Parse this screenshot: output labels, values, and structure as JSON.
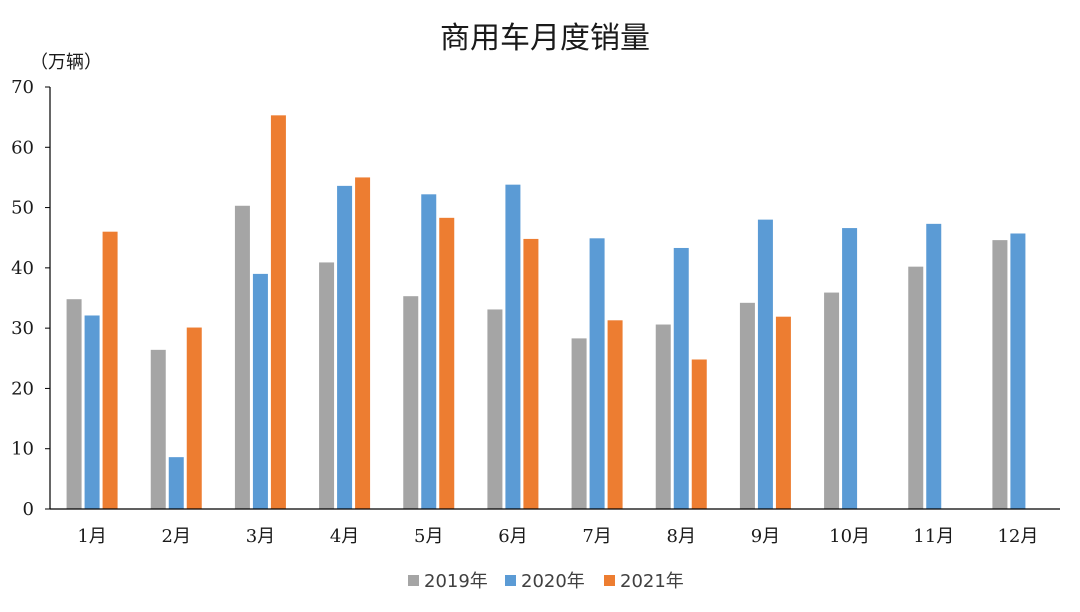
{
  "chart_data": {
    "type": "bar",
    "title": "商用车月度销量",
    "unit_label": "（万辆）",
    "xlabel": "",
    "ylabel": "",
    "ylim": [
      0,
      70
    ],
    "yticks": [
      0,
      10,
      20,
      30,
      40,
      50,
      60,
      70
    ],
    "grid": false,
    "legend_position": "bottom",
    "categories": [
      "1月",
      "2月",
      "3月",
      "4月",
      "5月",
      "6月",
      "7月",
      "8月",
      "9月",
      "10月",
      "11月",
      "12月"
    ],
    "series": [
      {
        "name": "2019年",
        "color": "#a5a5a5",
        "values": [
          34.8,
          26.4,
          50.3,
          40.9,
          35.3,
          33.1,
          28.3,
          30.6,
          34.2,
          35.9,
          40.2,
          44.6
        ]
      },
      {
        "name": "2020年",
        "color": "#5b9bd5",
        "values": [
          32.1,
          8.6,
          39.0,
          53.6,
          52.2,
          53.8,
          44.9,
          43.3,
          48.0,
          46.6,
          47.3,
          45.7
        ]
      },
      {
        "name": "2021年",
        "color": "#ed7d31",
        "values": [
          46.0,
          30.1,
          65.3,
          55.0,
          48.3,
          44.8,
          31.3,
          24.8,
          31.9,
          null,
          null,
          null
        ]
      }
    ]
  }
}
